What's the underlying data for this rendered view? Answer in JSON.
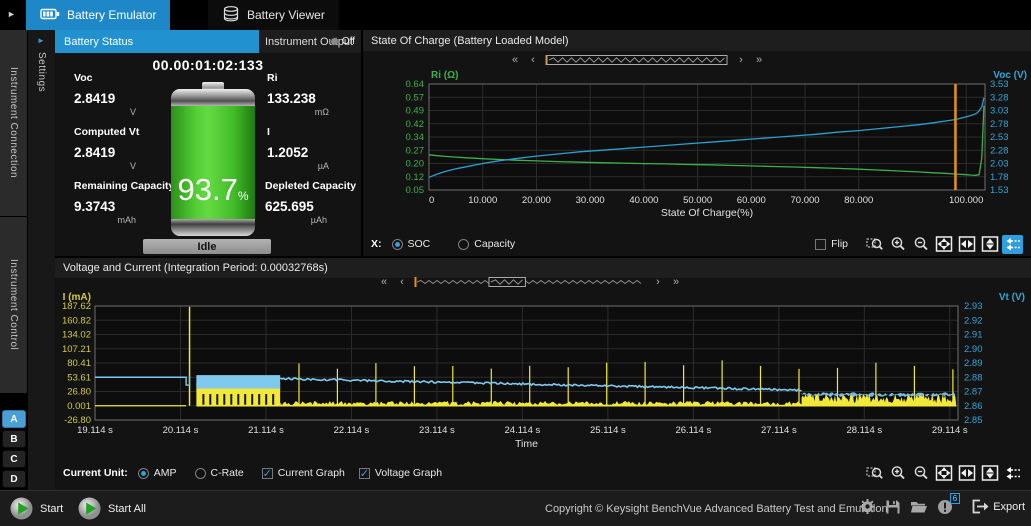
{
  "colors": {
    "accent_blue": "#1d87c8",
    "tab_blue": "#2191d0",
    "green": "#3db04b",
    "cyan": "#35a5d8",
    "yellow": "#f2e838",
    "voltage_blue": "#7fc9ee",
    "orange": "#e8930c",
    "channel_blue": "#4a9fd4"
  },
  "topbar": {
    "tabs": [
      {
        "label": "Battery Emulator",
        "active": true
      },
      {
        "label": "Battery Viewer",
        "active": false
      }
    ]
  },
  "sidebar": {
    "sections": [
      {
        "label": "Instrument Connection"
      },
      {
        "label": "Instrument Control"
      }
    ],
    "channels": [
      {
        "label": "A",
        "active": true
      },
      {
        "label": "B",
        "active": false
      },
      {
        "label": "C",
        "active": false
      },
      {
        "label": "D",
        "active": false
      }
    ]
  },
  "settings_panel": {
    "label": "Settings"
  },
  "battery_status": {
    "tab_label": "Battery Status",
    "output_tab_label": "Instrument Output",
    "output_state": "Off",
    "elapsed_time": "00.00:01:02:133",
    "metrics": [
      {
        "label": "Voc",
        "value": "2.8419",
        "unit": "V"
      },
      {
        "label": "Ri",
        "value": "133.238",
        "unit": "mΩ"
      },
      {
        "label": "Computed Vt",
        "value": "2.8419",
        "unit": "V"
      },
      {
        "label": "I",
        "value": "1.2052",
        "unit": "µA"
      },
      {
        "label": "Remaining Capacity",
        "value": "9.3743",
        "unit": "mAh"
      },
      {
        "label": "Depleted Capacity",
        "value": "625.695",
        "unit": "µAh"
      }
    ],
    "soc_percent": "93.7",
    "soc_unit": "%",
    "state": "Idle"
  },
  "soc_panel": {
    "x_mode_label": "X:",
    "modes": [
      {
        "label": "SOC",
        "selected": true
      },
      {
        "label": "Capacity",
        "selected": false
      }
    ],
    "flip_label": "Flip"
  },
  "vi_panel": {
    "unit_label": "Current Unit:",
    "units": [
      {
        "label": "AMP",
        "selected": true
      },
      {
        "label": "C-Rate",
        "selected": false
      }
    ],
    "toggles": [
      {
        "label": "Current Graph",
        "checked": true
      },
      {
        "label": "Voltage Graph",
        "checked": true
      }
    ]
  },
  "toolbar_icons": [
    "zoom-region",
    "zoom-in",
    "zoom-out",
    "fit-all",
    "fit-width",
    "fit-height",
    "pan-history"
  ],
  "scrollbars": {
    "soc": {
      "thumb_start": 0.0,
      "thumb_end": 1.0
    },
    "vi": {
      "thumb_start": 0.32,
      "thumb_end": 0.48
    }
  },
  "chart_data": [
    {
      "type": "line",
      "title": "State Of Charge (Battery Loaded Model)",
      "xlabel": "State Of Charge(%)",
      "x_range": [
        0,
        103.5
      ],
      "cursor_x": 98,
      "y_left": {
        "label": "Ri (Ω)",
        "range": [
          0.05,
          0.64
        ],
        "ticks": [
          "0.64",
          "0.57",
          "0.49",
          "0.42",
          "0.34",
          "0.27",
          "0.20",
          "0.12",
          "0.05"
        ]
      },
      "y_right": {
        "label": "Voc (V)",
        "range": [
          1.53,
          3.53
        ],
        "ticks": [
          "3.53",
          "3.28",
          "3.03",
          "2.78",
          "2.53",
          "2.28",
          "2.03",
          "1.78",
          "1.53"
        ]
      },
      "x_ticks": {
        "values": [
          0,
          10,
          20,
          30,
          40,
          50,
          60,
          70,
          80,
          100
        ],
        "labels": [
          "0",
          "10.000",
          "20.000",
          "30.000",
          "40.000",
          "50.000",
          "60.000",
          "70.000",
          "80.000",
          "100.000"
        ]
      },
      "series": [
        {
          "name": "Ri",
          "axis": "left",
          "color": "#3db04b",
          "x": [
            0,
            1.5,
            3,
            5,
            7,
            10,
            13,
            16,
            20,
            24,
            28,
            32,
            36,
            40,
            44,
            48,
            52,
            56,
            60,
            64,
            68,
            72,
            76,
            80,
            84,
            88,
            91,
            94,
            96,
            98,
            100,
            101,
            101.8,
            102.4,
            102.9,
            103.3
          ],
          "y": [
            0.246,
            0.241,
            0.237,
            0.233,
            0.229,
            0.224,
            0.22,
            0.216,
            0.212,
            0.208,
            0.205,
            0.202,
            0.2,
            0.197,
            0.195,
            0.192,
            0.19,
            0.187,
            0.184,
            0.181,
            0.178,
            0.174,
            0.17,
            0.166,
            0.161,
            0.155,
            0.151,
            0.146,
            0.143,
            0.139,
            0.135,
            0.133,
            0.132,
            0.135,
            0.23,
            0.52
          ]
        },
        {
          "name": "Voc",
          "axis": "right",
          "color": "#2b9fd0",
          "x": [
            0,
            1.5,
            3,
            5,
            7,
            10,
            13,
            16,
            20,
            24,
            28,
            32,
            36,
            40,
            44,
            48,
            52,
            56,
            60,
            64,
            68,
            72,
            76,
            80,
            84,
            88,
            91,
            94,
            96,
            98,
            100,
            101,
            101.8,
            102.4,
            102.9,
            103.3
          ],
          "y": [
            1.77,
            1.83,
            1.88,
            1.93,
            1.97,
            2.03,
            2.08,
            2.12,
            2.17,
            2.21,
            2.25,
            2.28,
            2.31,
            2.34,
            2.37,
            2.4,
            2.43,
            2.46,
            2.49,
            2.52,
            2.55,
            2.58,
            2.62,
            2.65,
            2.69,
            2.73,
            2.76,
            2.8,
            2.83,
            2.86,
            2.91,
            2.94,
            2.97,
            3.02,
            3.1,
            3.27
          ]
        }
      ]
    },
    {
      "type": "line",
      "title": "Voltage and Current (Integration Period: 0.00032768s)",
      "xlabel": "Time",
      "x_range": [
        19.114,
        29.21
      ],
      "y_left": {
        "label": "I (mA)",
        "range": [
          -26.8,
          187.62
        ],
        "ticks": [
          "187.62",
          "160.82",
          "134.02",
          "107.21",
          "80.41",
          "53.61",
          "26.80",
          "0.001",
          "-26.80"
        ]
      },
      "y_right": {
        "label": "Vt (V)",
        "range": [
          2.85,
          2.93
        ],
        "ticks": [
          "2.93",
          "2.92",
          "2.91",
          "2.90",
          "2.89",
          "2.88",
          "2.87",
          "2.86",
          "2.85"
        ]
      },
      "x_ticks": {
        "values": [
          19.114,
          20.114,
          21.114,
          22.114,
          23.114,
          24.114,
          25.114,
          26.114,
          27.114,
          28.114,
          29.114
        ],
        "labels": [
          "19.114 s",
          "20.114 s",
          "21.114 s",
          "22.114 s",
          "23.114 s",
          "24.114 s",
          "25.114 s",
          "26.114 s",
          "27.114 s",
          "28.114 s",
          "29.114 s"
        ]
      },
      "current": {
        "color": "#f2e838",
        "flat_y": 0.001,
        "flat_end": 20.18,
        "spike_x": 20.22,
        "spike_top": 186,
        "block": {
          "x0": 20.3,
          "x1": 21.28,
          "hi": 44
        },
        "mid": {
          "x0": 21.28,
          "x1": 27.38,
          "base_hi": 8,
          "spike_start": 21.5,
          "spike_interval": 0.45,
          "spike_lo": 66,
          "spike_hi": 86
        },
        "tail": {
          "x0": 27.38,
          "x1": 29.19,
          "hi": 20
        }
      },
      "voltage": {
        "color": "#7fc9ee",
        "flat_v": 2.88,
        "dip_v": 2.8745,
        "block": {
          "lo": 2.872,
          "hi": 2.8815
        },
        "mid": {
          "v_start": 2.879,
          "v_end": 2.871
        },
        "tail": {
          "v_hi": 2.8695,
          "v_lo": 2.866
        }
      }
    }
  ],
  "status_bar": {
    "start_label": "Start",
    "start_all_label": "Start All",
    "copyright": "Copyright © Keysight BenchVue Advanced Battery Test and Emulation",
    "export_label": "Export",
    "notification_count": "6"
  }
}
